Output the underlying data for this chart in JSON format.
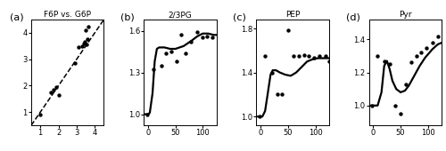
{
  "panel_a": {
    "title": "F6P vs. G6P",
    "xlim": [
      0.5,
      4.5
    ],
    "ylim": [
      0.5,
      4.5
    ],
    "xticks": [
      1,
      2,
      3,
      4
    ],
    "yticks": [
      1,
      2,
      3,
      4
    ],
    "scatter_x": [
      1.0,
      1.6,
      1.75,
      1.9,
      2.0,
      2.9,
      3.1,
      3.3,
      3.4,
      3.45,
      3.5,
      3.55,
      3.6,
      3.65
    ],
    "scatter_y": [
      0.9,
      1.75,
      1.85,
      1.95,
      1.65,
      2.85,
      3.45,
      3.5,
      3.6,
      3.65,
      4.1,
      3.55,
      3.75,
      4.25
    ]
  },
  "panel_b": {
    "title": "2/3PG",
    "xlim": [
      -8,
      125
    ],
    "ylim": [
      0.92,
      1.68
    ],
    "xticks": [
      0,
      50,
      100
    ],
    "yticks": [
      1.0,
      1.3,
      1.6
    ],
    "scatter_x": [
      -2,
      10,
      25,
      33,
      42,
      52,
      60,
      68,
      78,
      90,
      100,
      108,
      118
    ],
    "scatter_y": [
      1.0,
      1.32,
      1.35,
      1.44,
      1.45,
      1.38,
      1.57,
      1.44,
      1.52,
      1.59,
      1.55,
      1.56,
      1.55
    ],
    "line_x": [
      -5,
      0,
      3,
      8,
      12,
      16,
      20,
      25,
      30,
      40,
      50,
      65,
      80,
      90,
      100,
      110,
      120,
      125
    ],
    "line_y": [
      1.0,
      1.0,
      1.01,
      1.15,
      1.38,
      1.47,
      1.48,
      1.48,
      1.48,
      1.47,
      1.47,
      1.49,
      1.53,
      1.56,
      1.58,
      1.58,
      1.57,
      1.57
    ]
  },
  "panel_c": {
    "title": "PEP",
    "xlim": [
      -8,
      125
    ],
    "ylim": [
      0.92,
      1.88
    ],
    "xticks": [
      0,
      50,
      100
    ],
    "yticks": [
      1.0,
      1.4,
      1.8
    ],
    "scatter_x": [
      -2,
      8,
      20,
      30,
      38,
      50,
      60,
      70,
      80,
      88,
      98,
      108,
      118,
      125
    ],
    "scatter_y": [
      1.0,
      1.55,
      1.4,
      1.2,
      1.2,
      1.78,
      1.55,
      1.55,
      1.56,
      1.55,
      1.53,
      1.55,
      1.55,
      1.5
    ],
    "line_x": [
      -5,
      0,
      3,
      8,
      12,
      18,
      22,
      28,
      35,
      45,
      55,
      65,
      75,
      85,
      95,
      105,
      115,
      125
    ],
    "line_y": [
      1.0,
      1.0,
      1.0,
      1.05,
      1.18,
      1.38,
      1.42,
      1.42,
      1.4,
      1.38,
      1.37,
      1.4,
      1.45,
      1.5,
      1.52,
      1.53,
      1.53,
      1.53
    ]
  },
  "panel_d": {
    "title": "Pyr",
    "xlim": [
      -8,
      125
    ],
    "ylim": [
      0.88,
      1.52
    ],
    "xticks": [
      0,
      50,
      100
    ],
    "yticks": [
      1.0,
      1.2,
      1.4
    ],
    "scatter_x": [
      -2,
      8,
      20,
      30,
      40,
      50,
      60,
      70,
      80,
      88,
      98,
      108,
      118
    ],
    "scatter_y": [
      1.0,
      1.3,
      1.27,
      1.25,
      1.0,
      0.95,
      1.13,
      1.26,
      1.3,
      1.32,
      1.35,
      1.38,
      1.42
    ],
    "line_x": [
      -5,
      0,
      3,
      8,
      15,
      20,
      25,
      30,
      35,
      42,
      50,
      58,
      65,
      75,
      85,
      95,
      108,
      118,
      125
    ],
    "line_y": [
      1.0,
      1.0,
      1.0,
      1.0,
      1.08,
      1.24,
      1.27,
      1.22,
      1.15,
      1.1,
      1.08,
      1.09,
      1.12,
      1.18,
      1.24,
      1.29,
      1.34,
      1.37,
      1.38
    ]
  },
  "dot_color": "#000000",
  "line_color": "#000000",
  "dot_size": 10,
  "line_width": 1.6,
  "background_color": "#ffffff",
  "panel_labels": [
    "(a)",
    "(b)",
    "(c)",
    "(d)"
  ]
}
